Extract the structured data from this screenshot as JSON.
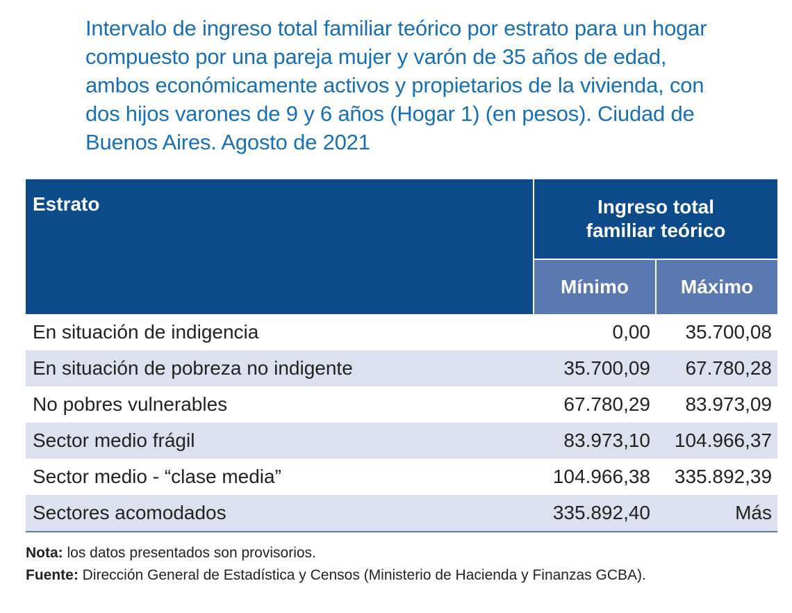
{
  "title": "Intervalo de ingreso total familiar teórico por estrato para un hogar compuesto por una pareja mujer y varón de 35 años de edad, ambos económicamente activos y propietarios de la vivienda, con dos hijos varones de 9 y 6 años (Hogar 1) (en pesos). Ciudad de Buenos Aires. Agosto de 2021",
  "table": {
    "header_estrato": "Estrato",
    "header_ingreso_line1": "Ingreso total",
    "header_ingreso_line2": "familiar teórico",
    "header_min": "Mínimo",
    "header_max": "Máximo",
    "rows": [
      {
        "estrato": "En situación de indigencia",
        "min": "0,00",
        "max": "35.700,08"
      },
      {
        "estrato": "En situación de pobreza no indigente",
        "min": "35.700,09",
        "max": "67.780,28"
      },
      {
        "estrato": "No pobres vulnerables",
        "min": "67.780,29",
        "max": "83.973,09"
      },
      {
        "estrato": "Sector medio frágil",
        "min": "83.973,10",
        "max": "104.966,37"
      },
      {
        "estrato": "Sector medio - “clase media”",
        "min": "104.966,38",
        "max": "335.892,39"
      },
      {
        "estrato": "Sectores acomodados",
        "min": "335.892,40",
        "max": "Más"
      }
    ]
  },
  "notes": {
    "nota_label": "Nota:",
    "nota_text": " los datos presentados son provisorios.",
    "fuente_label": "Fuente:",
    "fuente_text": " Dirección General de Estadística y Censos (Ministerio de Hacienda y Finanzas GCBA)."
  },
  "colors": {
    "title": "#1a6fb0",
    "header_dark": "#0c4a8a",
    "header_sub": "#5a79b0",
    "row_alt": "#dde0ee"
  }
}
